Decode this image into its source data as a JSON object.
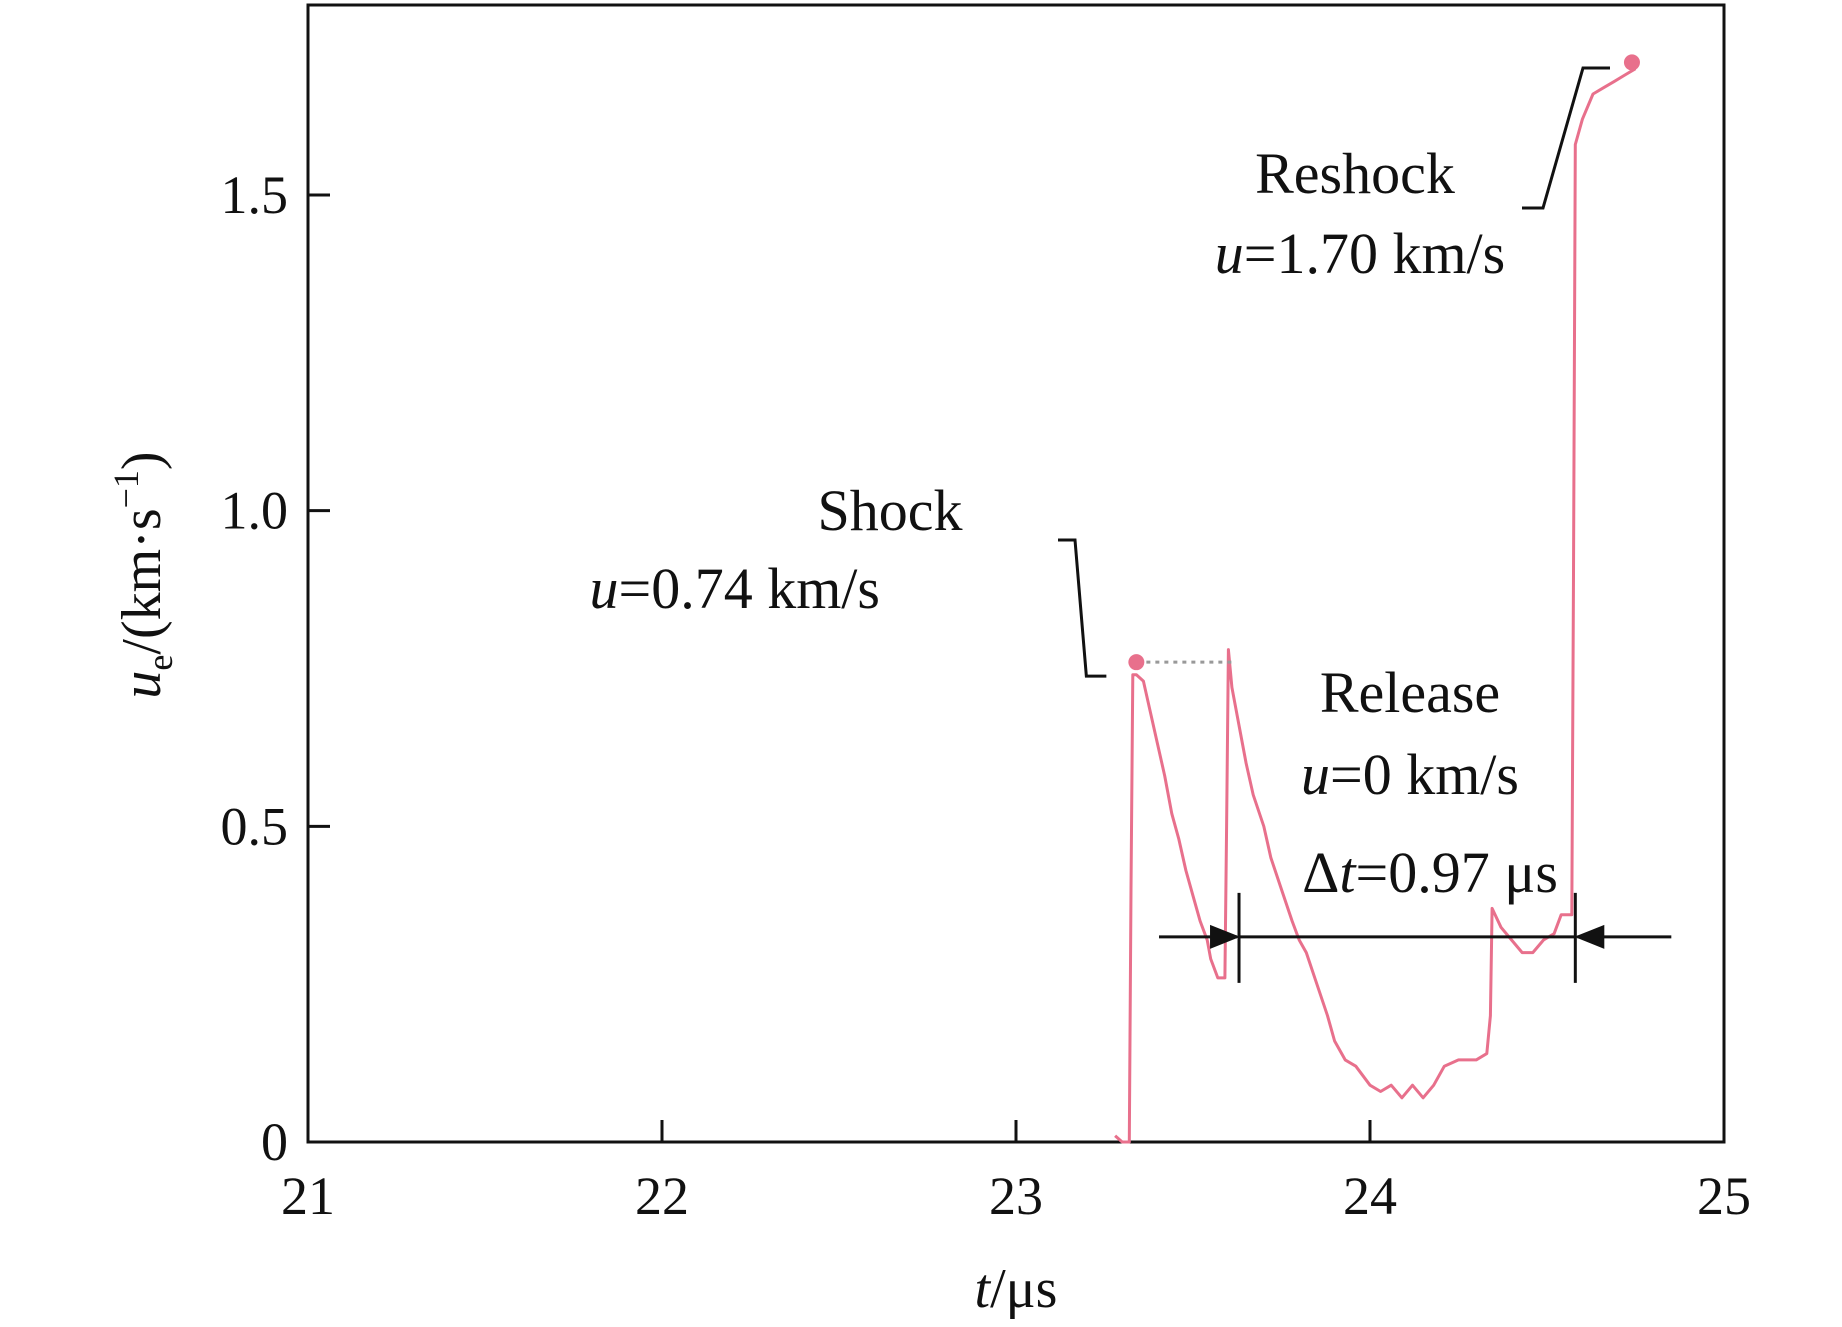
{
  "chart_data": {
    "type": "line",
    "title": "",
    "xlabel": {
      "var": "t",
      "unit": "/μs"
    },
    "ylabel": {
      "var": "u",
      "sub": "e",
      "unit_pre": "/(km·s",
      "unit_sup": "−1",
      "unit_post": ")"
    },
    "xlim": [
      21,
      25
    ],
    "ylim": [
      0,
      1.8
    ],
    "xticks": [
      21,
      22,
      23,
      24,
      25
    ],
    "xtick_labels": [
      "21",
      "22",
      "23",
      "24",
      "25"
    ],
    "yticks": [
      0,
      0.5,
      1.0,
      1.5
    ],
    "ytick_labels": [
      "0",
      "0.5",
      "1.0",
      "1.5"
    ],
    "grid": false,
    "legend": "none",
    "line_color": "#e8708c",
    "series": [
      {
        "x": [
          23.28,
          23.3,
          23.32,
          23.325,
          23.33,
          23.34,
          23.36,
          23.38,
          23.4,
          23.42,
          23.44,
          23.46,
          23.48,
          23.5,
          23.52,
          23.54,
          23.55,
          23.57,
          23.59,
          23.595,
          23.6,
          23.61,
          23.63,
          23.65,
          23.67,
          23.7,
          23.72,
          23.75,
          23.78,
          23.8,
          23.82,
          23.85,
          23.88,
          23.9,
          23.93,
          23.96,
          24.0,
          24.03,
          24.06,
          24.09,
          24.12,
          24.15,
          24.18,
          24.21,
          24.25,
          24.3,
          24.33,
          24.34,
          24.345,
          24.37,
          24.4,
          24.43,
          24.46,
          24.49,
          24.52,
          24.54,
          24.56,
          24.57,
          24.575,
          24.58,
          24.6,
          24.63,
          24.66,
          24.69,
          24.72,
          24.75
        ],
        "y": [
          0.01,
          0.0,
          0.0,
          0.4,
          0.74,
          0.74,
          0.73,
          0.68,
          0.63,
          0.58,
          0.52,
          0.48,
          0.43,
          0.39,
          0.35,
          0.32,
          0.29,
          0.26,
          0.26,
          0.5,
          0.78,
          0.72,
          0.66,
          0.6,
          0.55,
          0.5,
          0.45,
          0.4,
          0.35,
          0.32,
          0.3,
          0.25,
          0.2,
          0.16,
          0.13,
          0.12,
          0.09,
          0.08,
          0.09,
          0.07,
          0.09,
          0.07,
          0.09,
          0.12,
          0.13,
          0.13,
          0.14,
          0.2,
          0.37,
          0.34,
          0.32,
          0.3,
          0.3,
          0.32,
          0.33,
          0.36,
          0.36,
          0.36,
          0.9,
          1.58,
          1.62,
          1.66,
          1.67,
          1.68,
          1.69,
          1.7
        ]
      }
    ],
    "markers": [
      {
        "x": 23.34,
        "y": 0.76
      },
      {
        "x": 24.74,
        "y": 1.71
      }
    ],
    "annotations": {
      "shock": {
        "title": "Shock",
        "var": "u",
        "value": "=0.74 km/s"
      },
      "release": {
        "title": "Release",
        "var": "u",
        "value": "=0 km/s"
      },
      "delta": {
        "prefix": "Δ",
        "var": "t",
        "value": "=0.97 μs"
      },
      "reshock": {
        "title": "Reshock",
        "var": "u",
        "value": "=1.70 km/s"
      }
    },
    "delta_t_span": {
      "x_start": 23.63,
      "x_end": 24.58,
      "y": 0.325
    }
  }
}
